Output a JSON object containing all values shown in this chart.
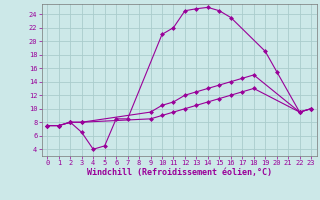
{
  "xlabel": "Windchill (Refroidissement éolien,°C)",
  "bg_color": "#cce8e8",
  "grid_color": "#aacccc",
  "line_color": "#990099",
  "x_ticks": [
    0,
    1,
    2,
    3,
    4,
    5,
    6,
    7,
    8,
    9,
    10,
    11,
    12,
    13,
    14,
    15,
    16,
    17,
    18,
    19,
    20,
    21,
    22,
    23
  ],
  "y_ticks": [
    4,
    6,
    8,
    10,
    12,
    14,
    16,
    18,
    20,
    22,
    24
  ],
  "xlim": [
    -0.5,
    23.5
  ],
  "ylim": [
    3.0,
    25.5
  ],
  "curve1_x": [
    0,
    1,
    2,
    3,
    4,
    5,
    6,
    7,
    10,
    11,
    12,
    13,
    14,
    15,
    16,
    19,
    20,
    22,
    23
  ],
  "curve1_y": [
    7.5,
    7.5,
    8.0,
    6.5,
    4.0,
    4.5,
    8.5,
    8.5,
    21.0,
    22.0,
    24.5,
    24.8,
    25.0,
    24.5,
    23.5,
    18.5,
    15.5,
    9.5,
    10.0
  ],
  "curve2_x": [
    0,
    1,
    2,
    3,
    9,
    10,
    11,
    12,
    13,
    14,
    15,
    16,
    17,
    18,
    22,
    23
  ],
  "curve2_y": [
    7.5,
    7.5,
    8.0,
    8.0,
    9.5,
    10.5,
    11.0,
    12.0,
    12.5,
    13.0,
    13.5,
    14.0,
    14.5,
    15.0,
    9.5,
    10.0
  ],
  "curve3_x": [
    0,
    1,
    2,
    3,
    9,
    10,
    11,
    12,
    13,
    14,
    15,
    16,
    17,
    18,
    22,
    23
  ],
  "curve3_y": [
    7.5,
    7.5,
    8.0,
    8.0,
    8.5,
    9.0,
    9.5,
    10.0,
    10.5,
    11.0,
    11.5,
    12.0,
    12.5,
    13.0,
    9.5,
    10.0
  ],
  "figsize": [
    3.2,
    2.0
  ],
  "dpi": 100,
  "lw": 0.8,
  "ms": 2.5,
  "xlabel_fontsize": 6.0,
  "tick_fontsize": 5.0
}
